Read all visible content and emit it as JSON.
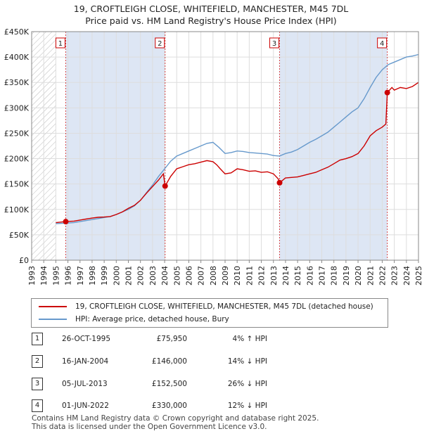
{
  "title_line1": "19, CROFTLEIGH CLOSE, WHITEFIELD, MANCHESTER, M45 7DL",
  "title_line2": "Price paid vs. HM Land Registry's House Price Index (HPI)",
  "colors": {
    "property": "#cc0000",
    "hpi": "#6699cc",
    "shade": "#dde6f4",
    "grid": "#dddddd",
    "hatch": "#bbbbbb"
  },
  "legend": {
    "property": "19, CROFTLEIGH CLOSE, WHITEFIELD, MANCHESTER, M45 7DL (detached house)",
    "hpi": "HPI: Average price, detached house, Bury"
  },
  "sales": [
    {
      "num": "1",
      "date": "26-OCT-1995",
      "price": "£75,950",
      "hpi": "4% ↑ HPI"
    },
    {
      "num": "2",
      "date": "16-JAN-2004",
      "price": "£146,000",
      "hpi": "14% ↓ HPI"
    },
    {
      "num": "3",
      "date": "05-JUL-2013",
      "price": "£152,500",
      "hpi": "26% ↓ HPI"
    },
    {
      "num": "4",
      "date": "01-JUN-2022",
      "price": "£330,000",
      "hpi": "12% ↓ HPI"
    }
  ],
  "footer": {
    "line1": "Contains HM Land Registry data © Crown copyright and database right 2025.",
    "line2": "This data is licensed under the Open Government Licence v3.0."
  },
  "chart_data": {
    "type": "line",
    "xlim": [
      1993,
      2025
    ],
    "ylim": [
      0,
      450000
    ],
    "y_ticks": [
      {
        "value": 0,
        "label": "£0"
      },
      {
        "value": 50000,
        "label": "£50K"
      },
      {
        "value": 100000,
        "label": "£100K"
      },
      {
        "value": 150000,
        "label": "£150K"
      },
      {
        "value": 200000,
        "label": "£200K"
      },
      {
        "value": 250000,
        "label": "£250K"
      },
      {
        "value": 300000,
        "label": "£300K"
      },
      {
        "value": 350000,
        "label": "£350K"
      },
      {
        "value": 400000,
        "label": "£400K"
      },
      {
        "value": 450000,
        "label": "£450K"
      }
    ],
    "x_ticks": [
      "1993",
      "1994",
      "1995",
      "1996",
      "1997",
      "1998",
      "1999",
      "2000",
      "2001",
      "2002",
      "2003",
      "2004",
      "2005",
      "2006",
      "2007",
      "2008",
      "2009",
      "2010",
      "2011",
      "2012",
      "2013",
      "2014",
      "2015",
      "2016",
      "2017",
      "2018",
      "2019",
      "2020",
      "2021",
      "2022",
      "2023",
      "2024",
      "2025"
    ],
    "hatched_until": 1995.0,
    "sale_markers": [
      {
        "label": "1",
        "x": 1995.82,
        "y": 75950
      },
      {
        "label": "2",
        "x": 2004.04,
        "y": 146000
      },
      {
        "label": "3",
        "x": 2013.51,
        "y": 152500
      },
      {
        "label": "4",
        "x": 2022.42,
        "y": 330000
      }
    ],
    "series": [
      {
        "name": "19, CROFTLEIGH CLOSE, WHITEFIELD, MANCHESTER, M45 7DL (detached house)",
        "x": [
          1995.0,
          1995.82,
          1996.5,
          1997.0,
          1997.5,
          1998.0,
          1998.5,
          1999.0,
          1999.5,
          2000.0,
          2000.5,
          2001.0,
          2001.5,
          2002.0,
          2002.5,
          2003.0,
          2003.5,
          2003.9,
          2004.04,
          2004.5,
          2005.0,
          2005.5,
          2006.0,
          2006.5,
          2007.0,
          2007.5,
          2008.0,
          2008.3,
          2008.6,
          2009.0,
          2009.5,
          2010.0,
          2010.5,
          2011.0,
          2011.5,
          2012.0,
          2012.5,
          2013.0,
          2013.4,
          2013.51,
          2014.0,
          2014.5,
          2015.0,
          2015.5,
          2016.0,
          2016.5,
          2017.0,
          2017.5,
          2018.0,
          2018.5,
          2019.0,
          2019.5,
          2020.0,
          2020.5,
          2021.0,
          2021.5,
          2022.0,
          2022.3,
          2022.42,
          2022.8,
          2023.0,
          2023.5,
          2024.0,
          2024.5,
          2025.0
        ],
        "y": [
          74000,
          75950,
          77000,
          79000,
          81000,
          83000,
          84500,
          85000,
          86000,
          90000,
          95000,
          102000,
          108000,
          118000,
          132000,
          145000,
          158000,
          170000,
          146000,
          165000,
          180000,
          184000,
          188000,
          190000,
          193000,
          196000,
          194000,
          188000,
          180000,
          170000,
          172000,
          180000,
          178000,
          175000,
          176000,
          173000,
          174000,
          170000,
          160000,
          152500,
          162000,
          163000,
          164000,
          167000,
          170000,
          173000,
          178000,
          183000,
          190000,
          197000,
          200000,
          204000,
          210000,
          225000,
          245000,
          255000,
          262000,
          268000,
          330000,
          340000,
          335000,
          340000,
          338000,
          342000,
          350000
        ]
      },
      {
        "name": "HPI: Average price, detached house, Bury",
        "x": [
          1995.0,
          1995.82,
          1996.5,
          1997.0,
          1997.5,
          1998.0,
          1998.5,
          1999.0,
          1999.5,
          2000.0,
          2000.5,
          2001.0,
          2001.5,
          2002.0,
          2002.5,
          2003.0,
          2003.5,
          2004.0,
          2004.5,
          2005.0,
          2005.5,
          2006.0,
          2006.5,
          2007.0,
          2007.5,
          2008.0,
          2008.5,
          2009.0,
          2009.5,
          2010.0,
          2010.5,
          2011.0,
          2011.5,
          2012.0,
          2012.5,
          2013.0,
          2013.5,
          2014.0,
          2014.5,
          2015.0,
          2015.5,
          2016.0,
          2016.5,
          2017.0,
          2017.5,
          2018.0,
          2018.5,
          2019.0,
          2019.5,
          2020.0,
          2020.5,
          2021.0,
          2021.5,
          2022.0,
          2022.5,
          2023.0,
          2023.5,
          2024.0,
          2024.5,
          2025.0
        ],
        "y": [
          72000,
          73000,
          74000,
          76000,
          78000,
          80000,
          82000,
          84000,
          86000,
          90000,
          95000,
          100000,
          107000,
          118000,
          133000,
          148000,
          165000,
          180000,
          195000,
          205000,
          210000,
          215000,
          220000,
          225000,
          230000,
          232000,
          222000,
          210000,
          212000,
          215000,
          214000,
          212000,
          211000,
          210000,
          209000,
          206000,
          205000,
          210000,
          213000,
          218000,
          225000,
          232000,
          238000,
          245000,
          252000,
          262000,
          272000,
          282000,
          292000,
          300000,
          318000,
          340000,
          360000,
          375000,
          385000,
          390000,
          395000,
          400000,
          402000,
          405000
        ]
      }
    ]
  }
}
